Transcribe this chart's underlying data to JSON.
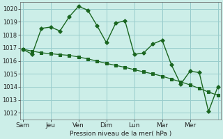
{
  "xlabel": "Pression niveau de la mer( hPa )",
  "ylim": [
    1011.5,
    1020.5
  ],
  "yticks": [
    1012,
    1013,
    1014,
    1015,
    1016,
    1017,
    1018,
    1019,
    1020
  ],
  "bg_color": "#cceee8",
  "grid_color": "#99cccc",
  "line_color": "#1a6620",
  "day_labels": [
    "Sam",
    "Jeu",
    "Ven",
    "Dim",
    "Lun",
    "Mar",
    "Mer"
  ],
  "day_positions": [
    0,
    3,
    6,
    9,
    12,
    15,
    18
  ],
  "xlim": [
    -0.3,
    21.3
  ],
  "jagged_x": [
    0,
    1,
    2,
    3,
    4,
    5,
    6,
    7,
    8,
    9,
    10,
    11,
    12,
    13,
    14,
    15,
    16,
    17,
    18,
    19,
    20,
    21
  ],
  "jagged_y": [
    1016.9,
    1016.5,
    1018.5,
    1018.6,
    1018.3,
    1019.4,
    1020.2,
    1019.9,
    1018.7,
    1017.4,
    1018.9,
    1019.1,
    1016.5,
    1016.6,
    1017.3,
    1017.6,
    1015.7,
    1014.2,
    1015.2,
    1015.1,
    1012.1,
    1014.0
  ],
  "smooth_x": [
    0,
    1,
    2,
    3,
    4,
    5,
    6,
    7,
    8,
    9,
    10,
    11,
    12,
    13,
    14,
    15,
    16,
    17,
    18,
    19,
    20,
    21
  ],
  "smooth_y": [
    1016.9,
    1016.75,
    1016.62,
    1016.55,
    1016.48,
    1016.42,
    1016.3,
    1016.15,
    1015.98,
    1015.8,
    1015.65,
    1015.5,
    1015.32,
    1015.15,
    1015.0,
    1014.82,
    1014.6,
    1014.38,
    1014.15,
    1013.88,
    1013.6,
    1013.35
  ]
}
